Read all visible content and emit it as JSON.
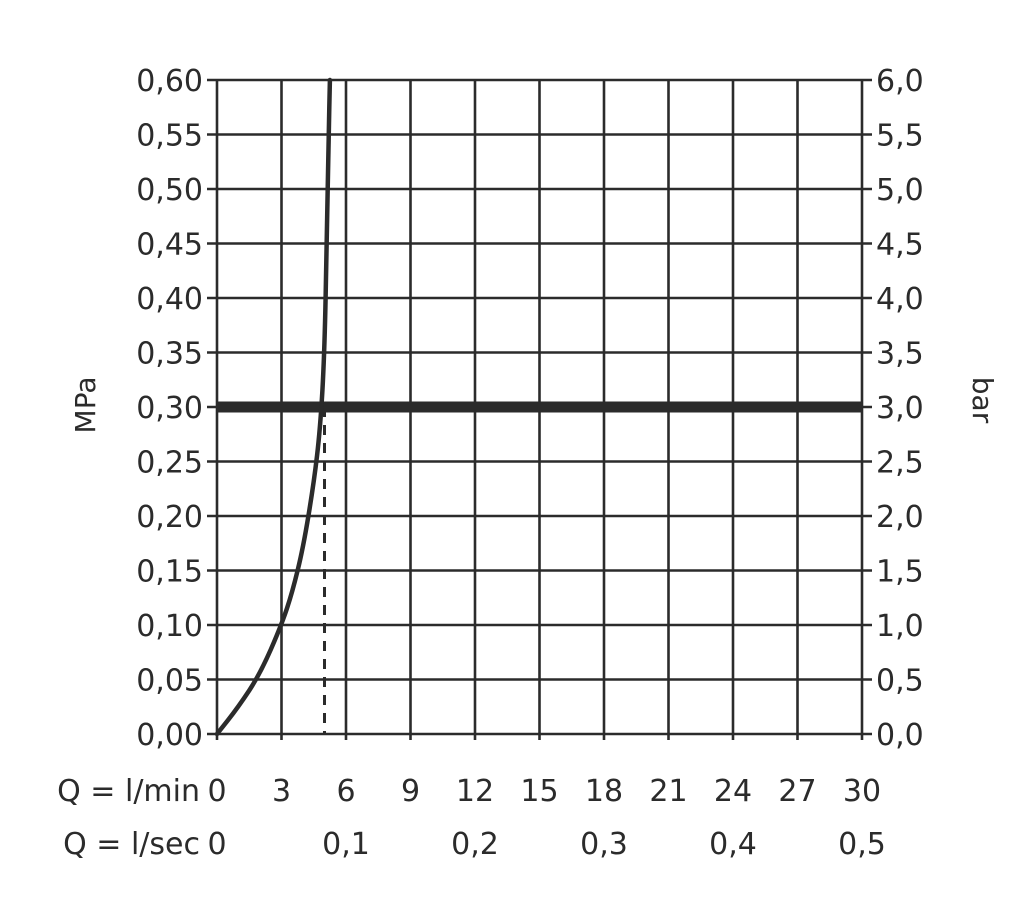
{
  "chart_data": {
    "type": "line",
    "title": "",
    "left_axis": {
      "label": "MPa",
      "range": [
        0,
        0.6
      ],
      "step": 0.05,
      "ticks": [
        "0,00",
        "0,05",
        "0,10",
        "0,15",
        "0,20",
        "0,25",
        "0,30",
        "0,35",
        "0,40",
        "0,45",
        "0,50",
        "0,55",
        "0,60"
      ]
    },
    "right_axis": {
      "label": "bar",
      "range": [
        0,
        6.0
      ],
      "ticks": [
        "0,0",
        "0,5",
        "1,0",
        "1,5",
        "2,0",
        "2,5",
        "3,0",
        "3,5",
        "4,0",
        "4,5",
        "5,0",
        "5,5",
        "6,0"
      ]
    },
    "x_axis": {
      "unit": "l/min",
      "range": [
        0,
        30
      ],
      "step": 3,
      "row_label_lmin": "Q = l/min",
      "ticks_lmin": [
        "0",
        "3",
        "6",
        "9",
        "12",
        "15",
        "18",
        "21",
        "24",
        "27",
        "30"
      ],
      "row_label_lsec": "Q = l/sec",
      "ticks_lsec": [
        {
          "label": "0",
          "at_lmin": 0
        },
        {
          "label": "0,1",
          "at_lmin": 6
        },
        {
          "label": "0,2",
          "at_lmin": 12
        },
        {
          "label": "0,3",
          "at_lmin": 18
        },
        {
          "label": "0,4",
          "at_lmin": 24
        },
        {
          "label": "0,5",
          "at_lmin": 30
        }
      ]
    },
    "grid": true,
    "series": [
      {
        "x": [
          0,
          1,
          2,
          3,
          3.5,
          4,
          4.5,
          4.8,
          5.0,
          5.1,
          5.2,
          5.25
        ],
        "y": [
          0,
          0.025,
          0.055,
          0.1,
          0.13,
          0.17,
          0.23,
          0.28,
          0.35,
          0.45,
          0.55,
          0.6
        ]
      }
    ],
    "reference_line_y": 0.3,
    "operating_point_x": 5.0
  }
}
